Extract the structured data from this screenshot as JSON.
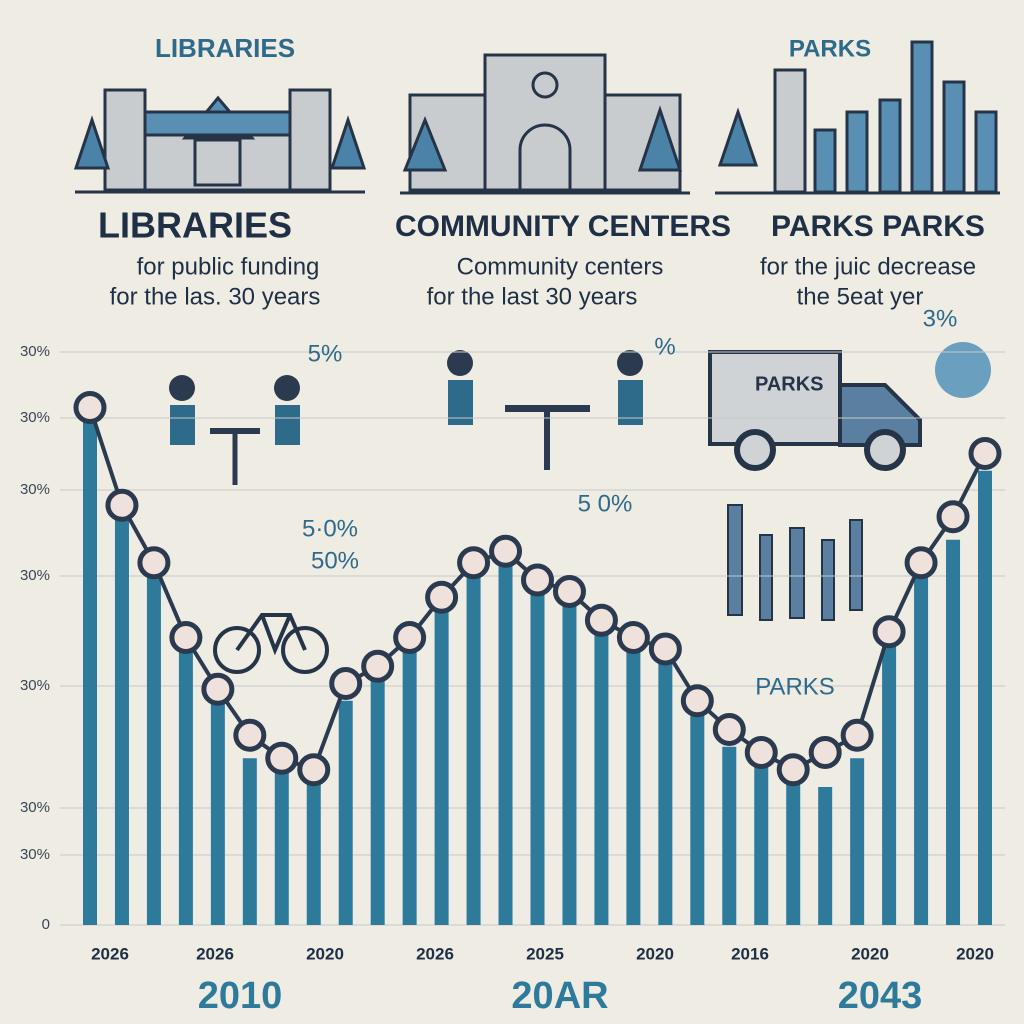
{
  "panels": {
    "top_left": "LIBRARIES",
    "top_right": "PARKS",
    "headings": [
      "LIBRARIES",
      "COMMUNITY CENTERS",
      "PARKS PARKS"
    ],
    "subtitles": [
      [
        "for public funding",
        "for the las. 30 years"
      ],
      [
        "Community centers",
        "for the last 30 years"
      ],
      [
        "for the juic decrease",
        "the 5eat yer"
      ]
    ],
    "truck_label": "PARKS"
  },
  "chart_data": {
    "type": "bar",
    "ylim": [
      0,
      100
    ],
    "y_axis_labels": [
      "30%",
      "30%",
      "30%",
      "30%",
      "30%",
      "30%",
      "30%",
      "0"
    ],
    "x_labels": [
      "2026",
      "2026",
      "2020",
      "2026",
      "2025",
      "2020",
      "2016",
      "2020",
      "2020"
    ],
    "period_labels": [
      "2010",
      "20AR",
      "2043"
    ],
    "annotations": [
      "5%",
      "5·0%",
      "50%",
      "5 0%",
      "%",
      "3%",
      "PARKS"
    ],
    "color": "#2e7a9a",
    "values": [
      90,
      72,
      63,
      50,
      41,
      29,
      27,
      25,
      39,
      43,
      50,
      57,
      63,
      63,
      58,
      57,
      51,
      50,
      47,
      37,
      31,
      29,
      27,
      24,
      29,
      50,
      61,
      67,
      79
    ],
    "line": {
      "color": "#2b3a4f",
      "values": [
        90,
        73,
        63,
        50,
        41,
        33,
        29,
        27,
        42,
        45,
        50,
        57,
        63,
        65,
        60,
        58,
        53,
        50,
        48,
        39,
        34,
        30,
        27,
        30,
        33,
        51,
        63,
        71,
        82
      ]
    }
  }
}
